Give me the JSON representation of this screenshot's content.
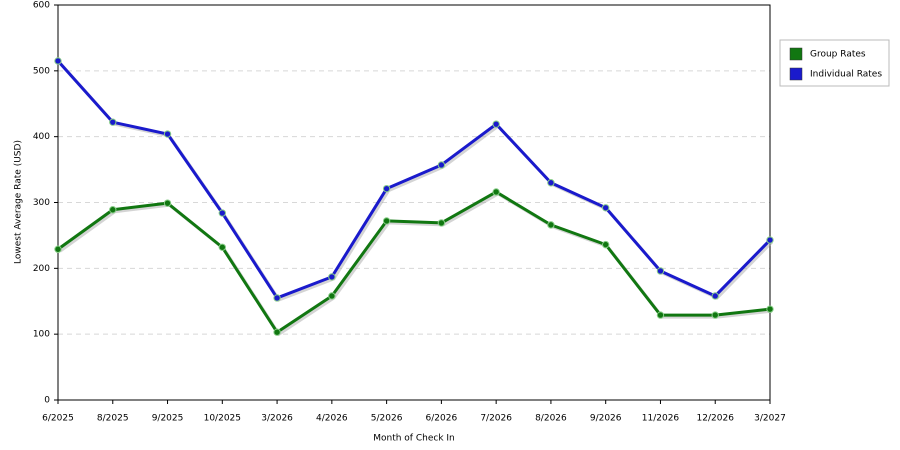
{
  "chart_data": {
    "type": "line",
    "x_label": "Month of Check In",
    "y_label": "Lowest Average Rate (USD)",
    "categories": [
      "6/2025",
      "8/2025",
      "9/2025",
      "10/2025",
      "3/2026",
      "4/2026",
      "5/2026",
      "6/2026",
      "7/2026",
      "8/2026",
      "9/2026",
      "11/2026",
      "12/2026",
      "3/2027"
    ],
    "series": [
      {
        "name": "Group Rates",
        "color": "#117711",
        "values": [
          229,
          289,
          299,
          232,
          103,
          158,
          272,
          269,
          316,
          266,
          236,
          129,
          129,
          138
        ]
      },
      {
        "name": "Individual Rates",
        "color": "#1a1acc",
        "values": [
          515,
          422,
          404,
          284,
          155,
          187,
          321,
          357,
          419,
          330,
          292,
          196,
          158,
          243
        ]
      }
    ],
    "ylim": [
      0,
      600
    ],
    "yticks": [
      0,
      100,
      200,
      300,
      400,
      500,
      600
    ],
    "grid": true,
    "legend": "right"
  }
}
